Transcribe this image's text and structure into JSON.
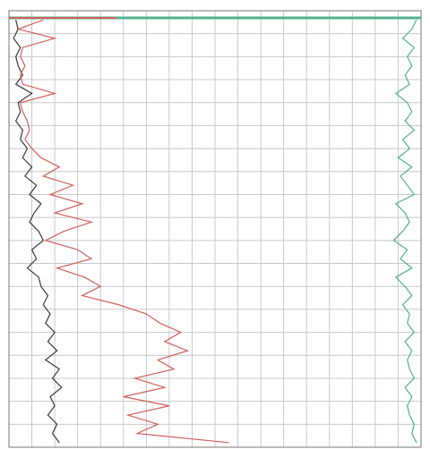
{
  "chart_data": {
    "type": "well-log",
    "xlim": [
      0,
      18
    ],
    "xticks": [
      0,
      1,
      2,
      3,
      4,
      5,
      6,
      7,
      8,
      9,
      10,
      11,
      12,
      13,
      14,
      15,
      16,
      17,
      18
    ],
    "ylim": [
      0,
      19
    ],
    "yticks": [
      0,
      1,
      2,
      3,
      4,
      5,
      6,
      7,
      8,
      9,
      10,
      11,
      12,
      13,
      14,
      15,
      16,
      17,
      18,
      19
    ],
    "grid": true,
    "depth": [
      0.4,
      0.8,
      1.2,
      1.6,
      2.0,
      2.4,
      2.8,
      3.2,
      3.6,
      4.0,
      4.4,
      4.8,
      5.2,
      5.6,
      6.0,
      6.4,
      6.8,
      7.2,
      7.6,
      8.0,
      8.4,
      8.8,
      9.2,
      9.6,
      10.0,
      10.4,
      10.8,
      11.2,
      11.6,
      12.0,
      12.4,
      12.8,
      13.2,
      13.6,
      14.0,
      14.4,
      14.8,
      15.2,
      15.6,
      16.0,
      16.4,
      16.8,
      17.2,
      17.6,
      18.0,
      18.4,
      18.8
    ],
    "series": [
      {
        "color": "#3a3a3a",
        "values": [
          0.3,
          0.4,
          0.2,
          0.5,
          0.3,
          0.4,
          0.6,
          0.3,
          1.0,
          0.4,
          0.5,
          0.3,
          0.6,
          0.5,
          0.8,
          0.6,
          1.0,
          0.7,
          1.2,
          0.9,
          1.4,
          1.1,
          0.9,
          1.3,
          1.5,
          1.0,
          1.2,
          0.8,
          1.3,
          1.4,
          1.7,
          1.5,
          1.8,
          1.6,
          2.0,
          1.7,
          2.1,
          1.6,
          2.2,
          1.9,
          2.3,
          1.8,
          2.0,
          1.7,
          2.1,
          1.9,
          2.2
        ]
      },
      {
        "color": "#d0605a",
        "values": [
          1.5,
          0.4,
          2.0,
          0.6,
          0.5,
          0.7,
          0.5,
          0.6,
          2.0,
          0.5,
          0.6,
          0.8,
          0.9,
          0.7,
          1.0,
          1.4,
          2.2,
          1.5,
          2.8,
          1.8,
          3.2,
          2.0,
          3.6,
          2.4,
          1.6,
          3.0,
          3.6,
          2.1,
          3.3,
          4.0,
          3.2,
          4.8,
          6.0,
          6.6,
          7.5,
          6.8,
          7.8,
          6.5,
          7.2,
          5.5,
          6.8,
          5.0,
          7.0,
          5.2,
          6.5,
          5.6,
          9.6
        ]
      },
      {
        "color": "#4fb38f",
        "values": [
          17.8,
          17.6,
          17.2,
          17.7,
          17.4,
          17.6,
          17.3,
          17.5,
          16.9,
          17.4,
          17.6,
          17.3,
          17.7,
          17.2,
          17.5,
          17.0,
          17.6,
          17.1,
          17.4,
          17.7,
          16.9,
          17.3,
          17.5,
          17.2,
          16.8,
          17.4,
          17.1,
          17.6,
          16.9,
          17.3,
          17.6,
          17.2,
          17.5,
          17.4,
          17.7,
          17.3,
          17.6,
          17.4,
          17.5,
          17.7,
          17.3,
          17.6,
          17.4,
          17.5,
          17.7,
          17.6,
          17.8
        ]
      }
    ]
  }
}
